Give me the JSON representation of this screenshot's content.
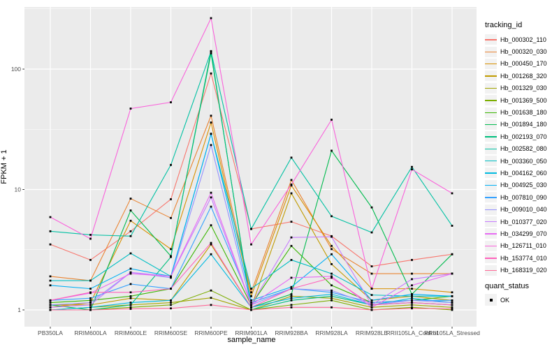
{
  "chart_data": {
    "type": "line",
    "title": "",
    "xlabel": "sample_name",
    "ylabel": "FPKM + 1",
    "y_scale": "log10",
    "y_ticks": [
      1,
      10,
      100
    ],
    "y_minor_breaks": [
      3.162,
      31.62,
      316.2
    ],
    "ylim": [
      0.73,
      330
    ],
    "grid": true,
    "panel_bg": "#EBEBEB",
    "grid_color": "#FFFFFF",
    "axis_text_color": "#4D4D4D",
    "tick_color": "#333333",
    "point_marker": "black-square",
    "categories": [
      "PB350LA",
      "RRIM600LA",
      "RRIM600LE",
      "RRIM600SE",
      "RRIM600PE",
      "RRIM901LA",
      "RRIM928BA",
      "RRIM928LA",
      "RRIM928LE",
      "RRII105LA_Control",
      "RRII105LA_Stressed"
    ],
    "legend": {
      "color_title": "tracking_id",
      "shape_title": "quant_status",
      "shape_label": "OK",
      "position": "right"
    },
    "series": [
      {
        "name": "Hb_000302_110",
        "color": "#F8766D",
        "values": [
          3.5,
          2.6,
          4.5,
          8.3,
          92,
          4.7,
          5.4,
          4.1,
          2.3,
          2.6,
          2.9
        ]
      },
      {
        "name": "Hb_000320_030",
        "color": "#EA8331",
        "values": [
          1.9,
          1.75,
          8.4,
          5.8,
          41,
          1.4,
          12,
          3.2,
          2.0,
          2.0,
          2.0
        ]
      },
      {
        "name": "Hb_000450_170",
        "color": "#D89000",
        "values": [
          1.05,
          1.15,
          5.5,
          3.2,
          36,
          1.3,
          10.8,
          3.4,
          1.5,
          1.5,
          1.4
        ]
      },
      {
        "name": "Hb_001268_320",
        "color": "#C09B00",
        "values": [
          1.1,
          1.1,
          1.25,
          1.2,
          3.5,
          1.05,
          9.3,
          2.4,
          1.2,
          1.3,
          1.2
        ]
      },
      {
        "name": "Hb_001329_030",
        "color": "#A3A500",
        "values": [
          1.0,
          1.05,
          1.1,
          1.15,
          1.26,
          1.0,
          1.3,
          1.25,
          1.05,
          1.1,
          1.05
        ]
      },
      {
        "name": "Hb_001369_500",
        "color": "#7CAE00",
        "values": [
          1.0,
          1.0,
          1.05,
          1.1,
          1.45,
          1.0,
          1.1,
          1.2,
          1.0,
          1.05,
          1.0
        ]
      },
      {
        "name": "Hb_001638_180",
        "color": "#39B600",
        "values": [
          1.15,
          1.2,
          1.3,
          1.5,
          5.05,
          1.1,
          3.4,
          1.6,
          1.15,
          1.2,
          1.3
        ]
      },
      {
        "name": "Hb_001894_180",
        "color": "#00BB4E",
        "values": [
          1.1,
          1.0,
          6.7,
          2.8,
          135,
          1.05,
          1.35,
          21,
          7.1,
          1.35,
          2.9
        ]
      },
      {
        "name": "Hb_002193_070",
        "color": "#00BF7D",
        "values": [
          1.0,
          1.0,
          1.1,
          2.75,
          141,
          1.0,
          1.2,
          1.3,
          1.1,
          1.15,
          1.1
        ]
      },
      {
        "name": "Hb_002582_080",
        "color": "#00C1A3",
        "values": [
          4.5,
          4.2,
          4.1,
          16,
          140,
          4.7,
          18.4,
          6.0,
          4.4,
          15.4,
          5.0
        ]
      },
      {
        "name": "Hb_003360_050",
        "color": "#00BFC4",
        "values": [
          1.75,
          1.75,
          2.95,
          1.9,
          29,
          1.5,
          2.6,
          2.0,
          1.33,
          1.3,
          1.3
        ]
      },
      {
        "name": "Hb_004162_060",
        "color": "#00BAE0",
        "values": [
          1.0,
          1.05,
          1.15,
          1.2,
          2.9,
          1.05,
          1.25,
          1.35,
          1.1,
          1.25,
          1.15
        ]
      },
      {
        "name": "Hb_004925_030",
        "color": "#00B0F6",
        "values": [
          1.6,
          1.5,
          2.2,
          1.9,
          29,
          1.2,
          1.55,
          2.9,
          1.2,
          1.35,
          1.3
        ]
      },
      {
        "name": "Hb_007810_090",
        "color": "#35A2FF",
        "values": [
          1.2,
          1.25,
          1.64,
          1.5,
          7.2,
          1.15,
          1.5,
          1.4,
          1.15,
          1.2,
          1.2
        ]
      },
      {
        "name": "Hb_009010_040",
        "color": "#9590FF",
        "values": [
          1.1,
          1.15,
          2.05,
          1.85,
          23.4,
          1.1,
          1.5,
          1.45,
          1.1,
          1.2,
          1.15
        ]
      },
      {
        "name": "Hb_010377_020",
        "color": "#C77CFF",
        "values": [
          1.05,
          1.1,
          2.05,
          1.9,
          8.6,
          1.1,
          4.0,
          4.05,
          1.1,
          1.8,
          2.0
        ]
      },
      {
        "name": "Hb_034299_070",
        "color": "#E76BF3",
        "values": [
          1.2,
          1.38,
          2.0,
          1.9,
          9.4,
          1.1,
          1.85,
          1.9,
          1.05,
          1.6,
          2.0
        ]
      },
      {
        "name": "Hb_126711_010",
        "color": "#FA62DB",
        "values": [
          5.9,
          3.9,
          47,
          53,
          265,
          3.5,
          11,
          38,
          1.5,
          14.7,
          9.3
        ]
      },
      {
        "name": "Hb_153774_010",
        "color": "#FF62BC",
        "values": [
          1.2,
          1.4,
          1.4,
          1.5,
          3.6,
          1.05,
          1.5,
          1.85,
          1.1,
          1.15,
          1.1
        ]
      },
      {
        "name": "Hb_168319_020",
        "color": "#FF6A98",
        "values": [
          1.0,
          1.0,
          1.02,
          1.03,
          1.1,
          1.0,
          1.05,
          1.05,
          1.0,
          1.03,
          1.02
        ]
      }
    ]
  }
}
